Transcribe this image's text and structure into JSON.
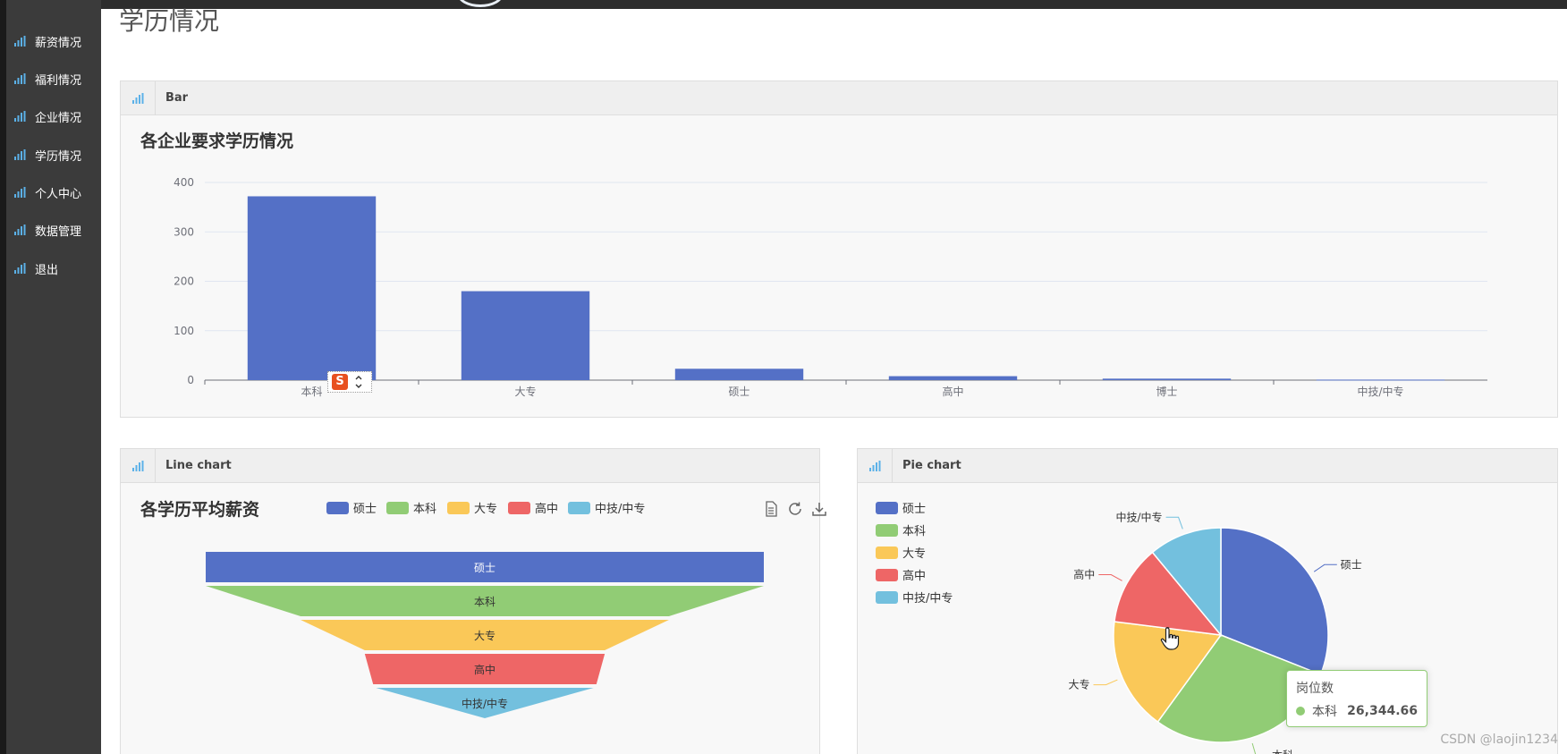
{
  "sidebar": {
    "items": [
      {
        "label": "薪资情况"
      },
      {
        "label": "福利情况"
      },
      {
        "label": "企业情况"
      },
      {
        "label": "学历情况"
      },
      {
        "label": "个人中心"
      },
      {
        "label": "数据管理"
      },
      {
        "label": "退出"
      }
    ],
    "icon": "bar-chart-icon",
    "icon_color": "#5bb1e8"
  },
  "page": {
    "title": "学历情况"
  },
  "panels": {
    "bar": {
      "header": "Bar"
    },
    "line": {
      "header": "Line chart"
    },
    "pie": {
      "header": "Pie chart"
    }
  },
  "chart_data": [
    {
      "type": "bar",
      "title": "各企业要求学历情况",
      "categories": [
        "本科",
        "大专",
        "硕士",
        "高中",
        "博士",
        "中技/中专"
      ],
      "values": [
        372,
        180,
        23,
        8,
        3,
        1
      ],
      "ylim": [
        0,
        400
      ],
      "yticks": [
        "0",
        "100",
        "200",
        "300",
        "400"
      ],
      "color": "#5470c6",
      "grid": true
    },
    {
      "type": "funnel",
      "title": "各学历平均薪资",
      "categories": [
        "硕士",
        "本科",
        "大专",
        "高中",
        "中技/中专"
      ],
      "legend": [
        "硕士",
        "本科",
        "大专",
        "高中",
        "中技/中专"
      ],
      "legend_position": "top",
      "colors": [
        "#5470c6",
        "#91cc75",
        "#fac858",
        "#ee6666",
        "#73c0de"
      ],
      "toolbox": [
        "data-view-icon",
        "refresh-icon",
        "download-icon"
      ]
    },
    {
      "type": "pie",
      "categories": [
        "硕士",
        "本科",
        "大专",
        "高中",
        "中技/中专"
      ],
      "values": [
        31,
        29,
        17,
        12,
        11
      ],
      "legend": [
        "硕士",
        "本科",
        "大专",
        "高中",
        "中技/中专"
      ],
      "legend_position": "top-left",
      "colors": [
        "#5470c6",
        "#91cc75",
        "#fac858",
        "#ee6666",
        "#73c0de"
      ],
      "tooltip": {
        "title": "岗位数",
        "name": "本科",
        "value": "26,344.66"
      }
    }
  ],
  "watermark": "CSDN @laojin1234"
}
